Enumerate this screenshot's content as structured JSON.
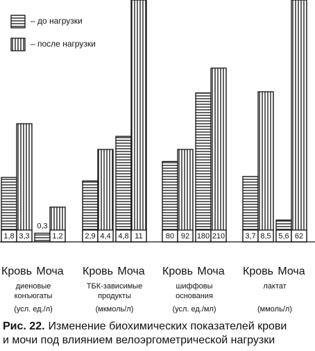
{
  "chart_data": {
    "type": "bar",
    "figure_label": "Рис. 22.",
    "title_lines": [
      "Изменение биохимических показателей крови",
      "и мочи под влиянием велоэргометрической нагрузки"
    ],
    "series": [
      {
        "name": "– до нагрузки",
        "pattern": "horizontal"
      },
      {
        "name": "– после нагрузки",
        "pattern": "vertical"
      }
    ],
    "groups": [
      {
        "label_lines": [
          "диеновые",
          "конъюгаты"
        ],
        "unit": "(усл. ед./л)",
        "categories": [
          "Кровь",
          "Моча"
        ],
        "values": [
          [
            1.8,
            3.3
          ],
          [
            0.3,
            1.2
          ]
        ],
        "value_labels": [
          [
            "1,8",
            "3,3"
          ],
          [
            "0,3",
            "1,2"
          ]
        ]
      },
      {
        "label_lines": [
          "ТБК-зависимые",
          "продукты"
        ],
        "unit": "(мкмоль/л)",
        "categories": [
          "Кровь",
          "Моча"
        ],
        "values": [
          [
            2.9,
            4.4
          ],
          [
            4.8,
            11
          ]
        ],
        "value_labels": [
          [
            "2,9",
            "4,4"
          ],
          [
            "4,8",
            "11"
          ]
        ]
      },
      {
        "label_lines": [
          "шиффовы",
          "основания"
        ],
        "unit": "(усл. ед./мл)",
        "categories": [
          "Кровь",
          "Моча"
        ],
        "values": [
          [
            80,
            92
          ],
          [
            180,
            210
          ]
        ],
        "value_labels": [
          [
            "80",
            "92"
          ],
          [
            "180",
            "210"
          ]
        ]
      },
      {
        "label_lines": [
          "лактат"
        ],
        "unit": "(ммоль/л)",
        "categories": [
          "Кровь",
          "Моча"
        ],
        "values": [
          [
            3.7,
            8.5
          ],
          [
            5.6,
            62
          ]
        ],
        "value_labels": [
          [
            "3,7",
            "8,5"
          ],
          [
            "5,6",
            "62"
          ]
        ]
      }
    ]
  }
}
